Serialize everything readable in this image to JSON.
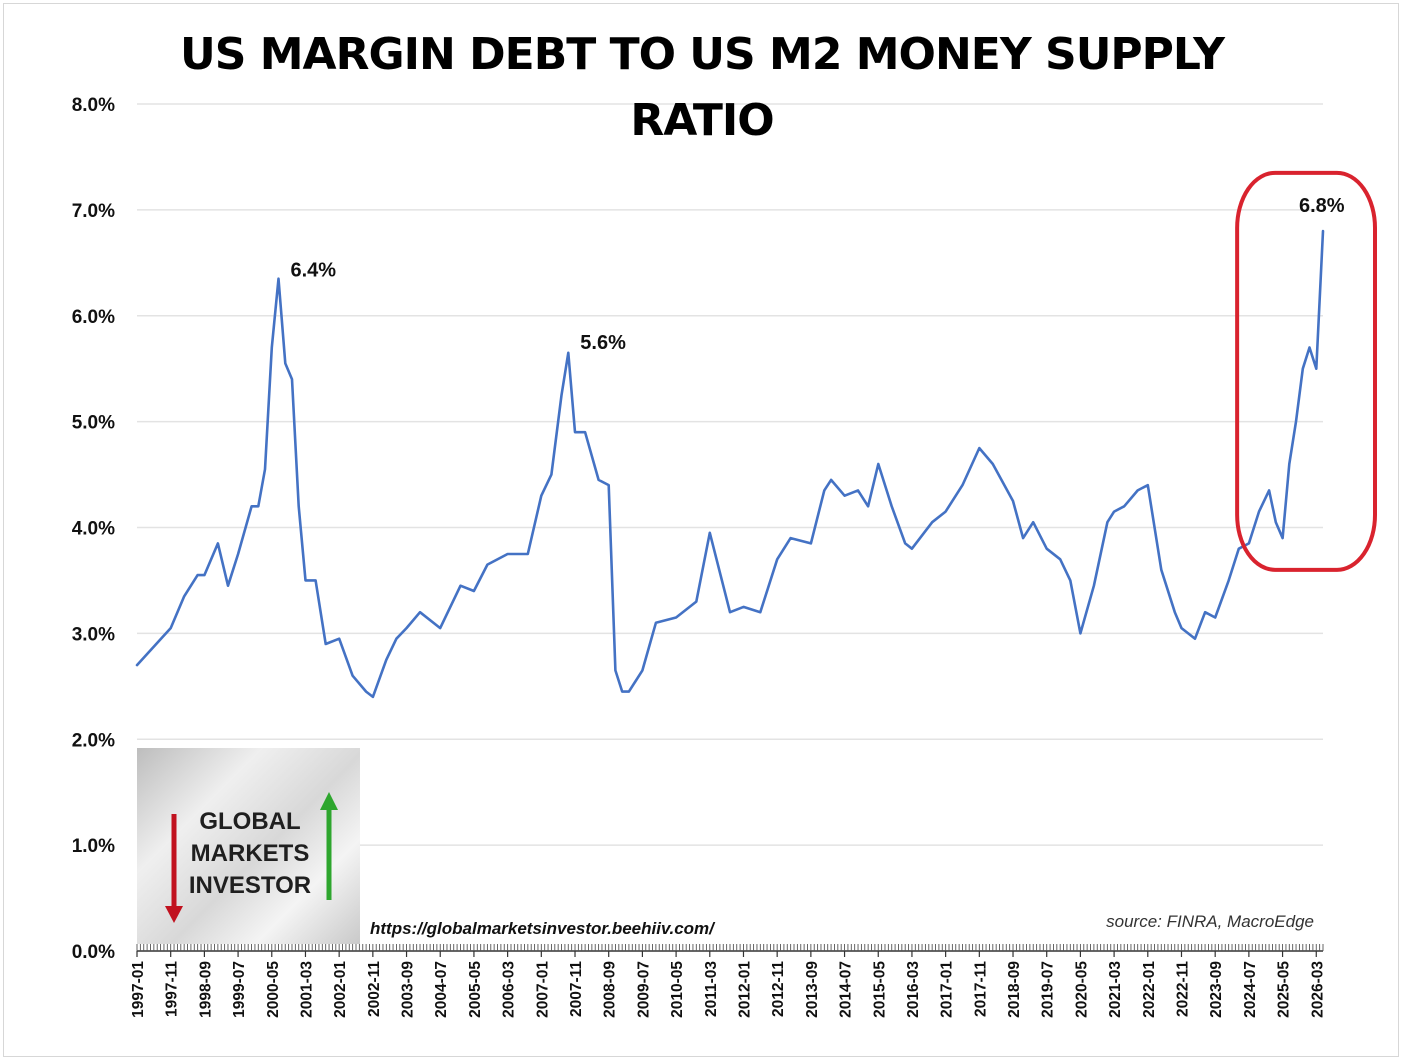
{
  "chart_data": {
    "type": "line",
    "title": "US MARGIN DEBT TO US M2 MONEY SUPPLY RATIO",
    "xlabel": "",
    "ylabel": "",
    "ylim": [
      0,
      8
    ],
    "yticks": [
      "0.0%",
      "1.0%",
      "2.0%",
      "3.0%",
      "4.0%",
      "5.0%",
      "6.0%",
      "7.0%",
      "8.0%"
    ],
    "xtick_labels": [
      "1997-01",
      "1997-11",
      "1998-09",
      "1999-07",
      "2000-05",
      "2001-03",
      "2002-01",
      "2002-11",
      "2003-09",
      "2004-07",
      "2005-05",
      "2006-03",
      "2007-01",
      "2007-11",
      "2008-09",
      "2009-07",
      "2010-05",
      "2011-03",
      "2012-01",
      "2012-11",
      "2013-09",
      "2014-07",
      "2015-05",
      "2016-03",
      "2017-01",
      "2017-11",
      "2018-09",
      "2019-07",
      "2020-05",
      "2021-03",
      "2022-01",
      "2022-11",
      "2023-09",
      "2024-07",
      "2025-05",
      "2026-03"
    ],
    "grid": true,
    "line_color": "#4472c4",
    "series": [
      {
        "x": [
          "1997-01",
          "1997-11",
          "1998-03",
          "1998-07",
          "1998-09",
          "1999-01",
          "1999-04",
          "1999-07",
          "1999-11",
          "2000-01",
          "2000-03",
          "2000-05",
          "2000-07",
          "2000-09",
          "2000-11",
          "2001-01",
          "2001-03",
          "2001-06",
          "2001-09",
          "2002-01",
          "2002-05",
          "2002-09",
          "2002-11",
          "2003-03",
          "2003-06",
          "2003-09",
          "2004-01",
          "2004-07",
          "2005-01",
          "2005-05",
          "2005-09",
          "2006-03",
          "2006-09",
          "2007-01",
          "2007-04",
          "2007-07",
          "2007-09",
          "2007-11",
          "2008-02",
          "2008-06",
          "2008-09",
          "2008-11",
          "2009-01",
          "2009-03",
          "2009-07",
          "2009-11",
          "2010-05",
          "2010-11",
          "2011-03",
          "2011-09",
          "2012-01",
          "2012-06",
          "2012-11",
          "2013-03",
          "2013-09",
          "2014-01",
          "2014-03",
          "2014-07",
          "2014-11",
          "2015-02",
          "2015-05",
          "2015-09",
          "2016-01",
          "2016-03",
          "2016-09",
          "2017-01",
          "2017-06",
          "2017-11",
          "2018-03",
          "2018-09",
          "2018-12",
          "2019-03",
          "2019-07",
          "2019-11",
          "2020-02",
          "2020-05",
          "2020-09",
          "2021-01",
          "2021-03",
          "2021-06",
          "2021-10",
          "2022-01",
          "2022-05",
          "2022-09",
          "2022-11",
          "2023-03",
          "2023-06",
          "2023-09",
          "2024-01",
          "2024-04",
          "2024-07",
          "2024-10",
          "2025-01",
          "2025-03",
          "2025-05",
          "2025-07",
          "2025-09",
          "2025-11",
          "2026-01",
          "2026-03",
          "2026-05"
        ],
        "values": [
          2.7,
          3.05,
          3.35,
          3.55,
          3.55,
          3.85,
          3.45,
          3.75,
          4.2,
          4.2,
          4.55,
          5.7,
          6.35,
          5.55,
          5.4,
          4.2,
          3.5,
          3.5,
          2.9,
          2.95,
          2.6,
          2.45,
          2.4,
          2.75,
          2.95,
          3.05,
          3.2,
          3.05,
          3.45,
          3.4,
          3.65,
          3.75,
          3.75,
          4.3,
          4.5,
          5.25,
          5.65,
          4.9,
          4.9,
          4.45,
          4.4,
          2.65,
          2.45,
          2.45,
          2.65,
          3.1,
          3.15,
          3.3,
          3.95,
          3.2,
          3.25,
          3.2,
          3.7,
          3.9,
          3.85,
          4.35,
          4.45,
          4.3,
          4.35,
          4.2,
          4.6,
          4.2,
          3.85,
          3.8,
          4.05,
          4.15,
          4.4,
          4.75,
          4.6,
          4.25,
          3.9,
          4.05,
          3.8,
          3.7,
          3.5,
          3.0,
          3.45,
          4.05,
          4.15,
          4.2,
          4.35,
          4.4,
          3.6,
          3.2,
          3.05,
          2.95,
          3.2,
          3.15,
          3.5,
          3.8,
          3.85,
          4.15,
          4.35,
          4.05,
          3.9,
          4.6,
          5.0,
          5.5,
          5.7,
          5.5,
          6.8
        ]
      }
    ],
    "annotations": [
      {
        "text": "6.4%",
        "x": "2000-07",
        "y": 6.35
      },
      {
        "text": "5.6%",
        "x": "2007-09",
        "y": 5.65
      },
      {
        "text": "6.8%",
        "x": "2026-05",
        "y": 6.8
      }
    ],
    "highlight_color": "#d9232e"
  },
  "logo": {
    "lines": [
      "GLOBAL",
      "MARKETS",
      "INVESTOR"
    ],
    "down_color": "#c1121f",
    "up_color": "#2ea62e"
  },
  "footer": {
    "url": "https://globalmarketsinvestor.beehiiv.com/",
    "source": "source: FINRA, MacroEdge"
  }
}
